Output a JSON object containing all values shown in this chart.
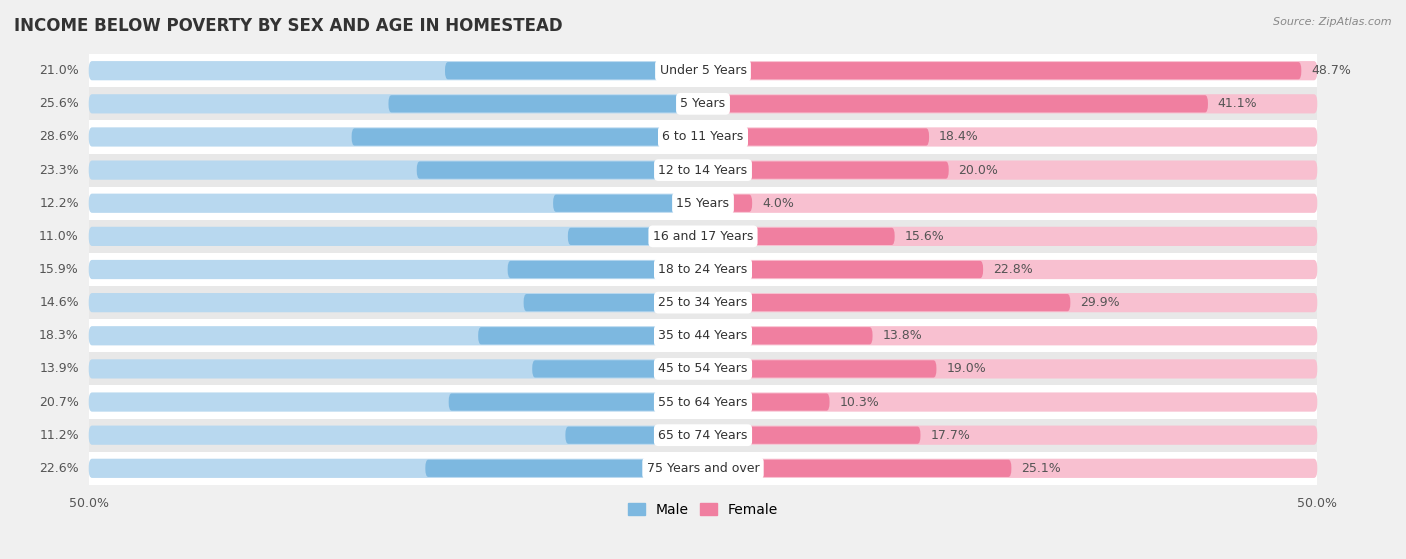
{
  "title": "INCOME BELOW POVERTY BY SEX AND AGE IN HOMESTEAD",
  "source": "Source: ZipAtlas.com",
  "categories": [
    "Under 5 Years",
    "5 Years",
    "6 to 11 Years",
    "12 to 14 Years",
    "15 Years",
    "16 and 17 Years",
    "18 to 24 Years",
    "25 to 34 Years",
    "35 to 44 Years",
    "45 to 54 Years",
    "55 to 64 Years",
    "65 to 74 Years",
    "75 Years and over"
  ],
  "male": [
    21.0,
    25.6,
    28.6,
    23.3,
    12.2,
    11.0,
    15.9,
    14.6,
    18.3,
    13.9,
    20.7,
    11.2,
    22.6
  ],
  "female": [
    48.7,
    41.1,
    18.4,
    20.0,
    4.0,
    15.6,
    22.8,
    29.9,
    13.8,
    19.0,
    10.3,
    17.7,
    25.1
  ],
  "male_color": "#7db8e0",
  "female_color": "#f07fa0",
  "male_color_light": "#b8d8ef",
  "female_color_light": "#f8c0d0",
  "male_label": "Male",
  "female_label": "Female",
  "axis_max": 50.0,
  "bg_color": "#f0f0f0",
  "row_color_even": "#ffffff",
  "row_color_odd": "#e8e8e8",
  "title_fontsize": 12,
  "label_fontsize": 9,
  "tick_fontsize": 9,
  "source_fontsize": 8
}
